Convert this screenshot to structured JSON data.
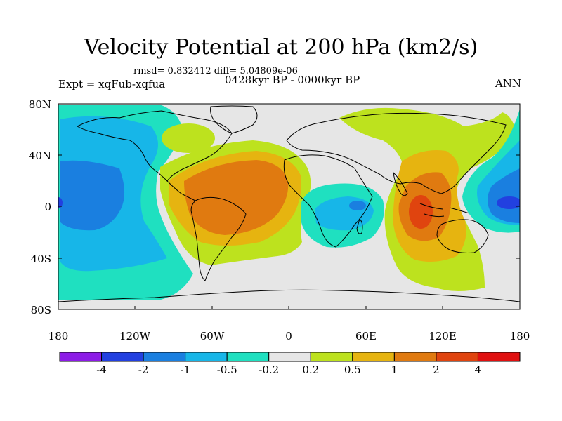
{
  "header": {
    "title": "Velocity Potential at 200 hPa (km2/s)",
    "stats": "rmsd= 0.832412 diff= 5.04809e-06",
    "expt": "Expt = xqFub-xqfua",
    "period": "0428kyr BP - 0000kyr BP",
    "season": "ANN"
  },
  "axes": {
    "lat_labels": [
      "80N",
      "40N",
      "0",
      "40S",
      "80S"
    ],
    "lon_labels": [
      "180",
      "120W",
      "60W",
      "0",
      "60E",
      "120E",
      "180"
    ]
  },
  "colorbar": {
    "labels": [
      "-4",
      "-2",
      "-1",
      "-0.5",
      "-0.2",
      "0.2",
      "0.5",
      "1",
      "2",
      "4"
    ],
    "colors": [
      "#8c1ce6",
      "#2240e0",
      "#1a7fe0",
      "#17b6e8",
      "#1fe0c0",
      "#e6e6e6",
      "#bde21e",
      "#e6b410",
      "#e07a10",
      "#e0440f",
      "#e01010"
    ]
  },
  "map_colors": {
    "land_line": "#000000",
    "background": "#e6e6e6"
  }
}
